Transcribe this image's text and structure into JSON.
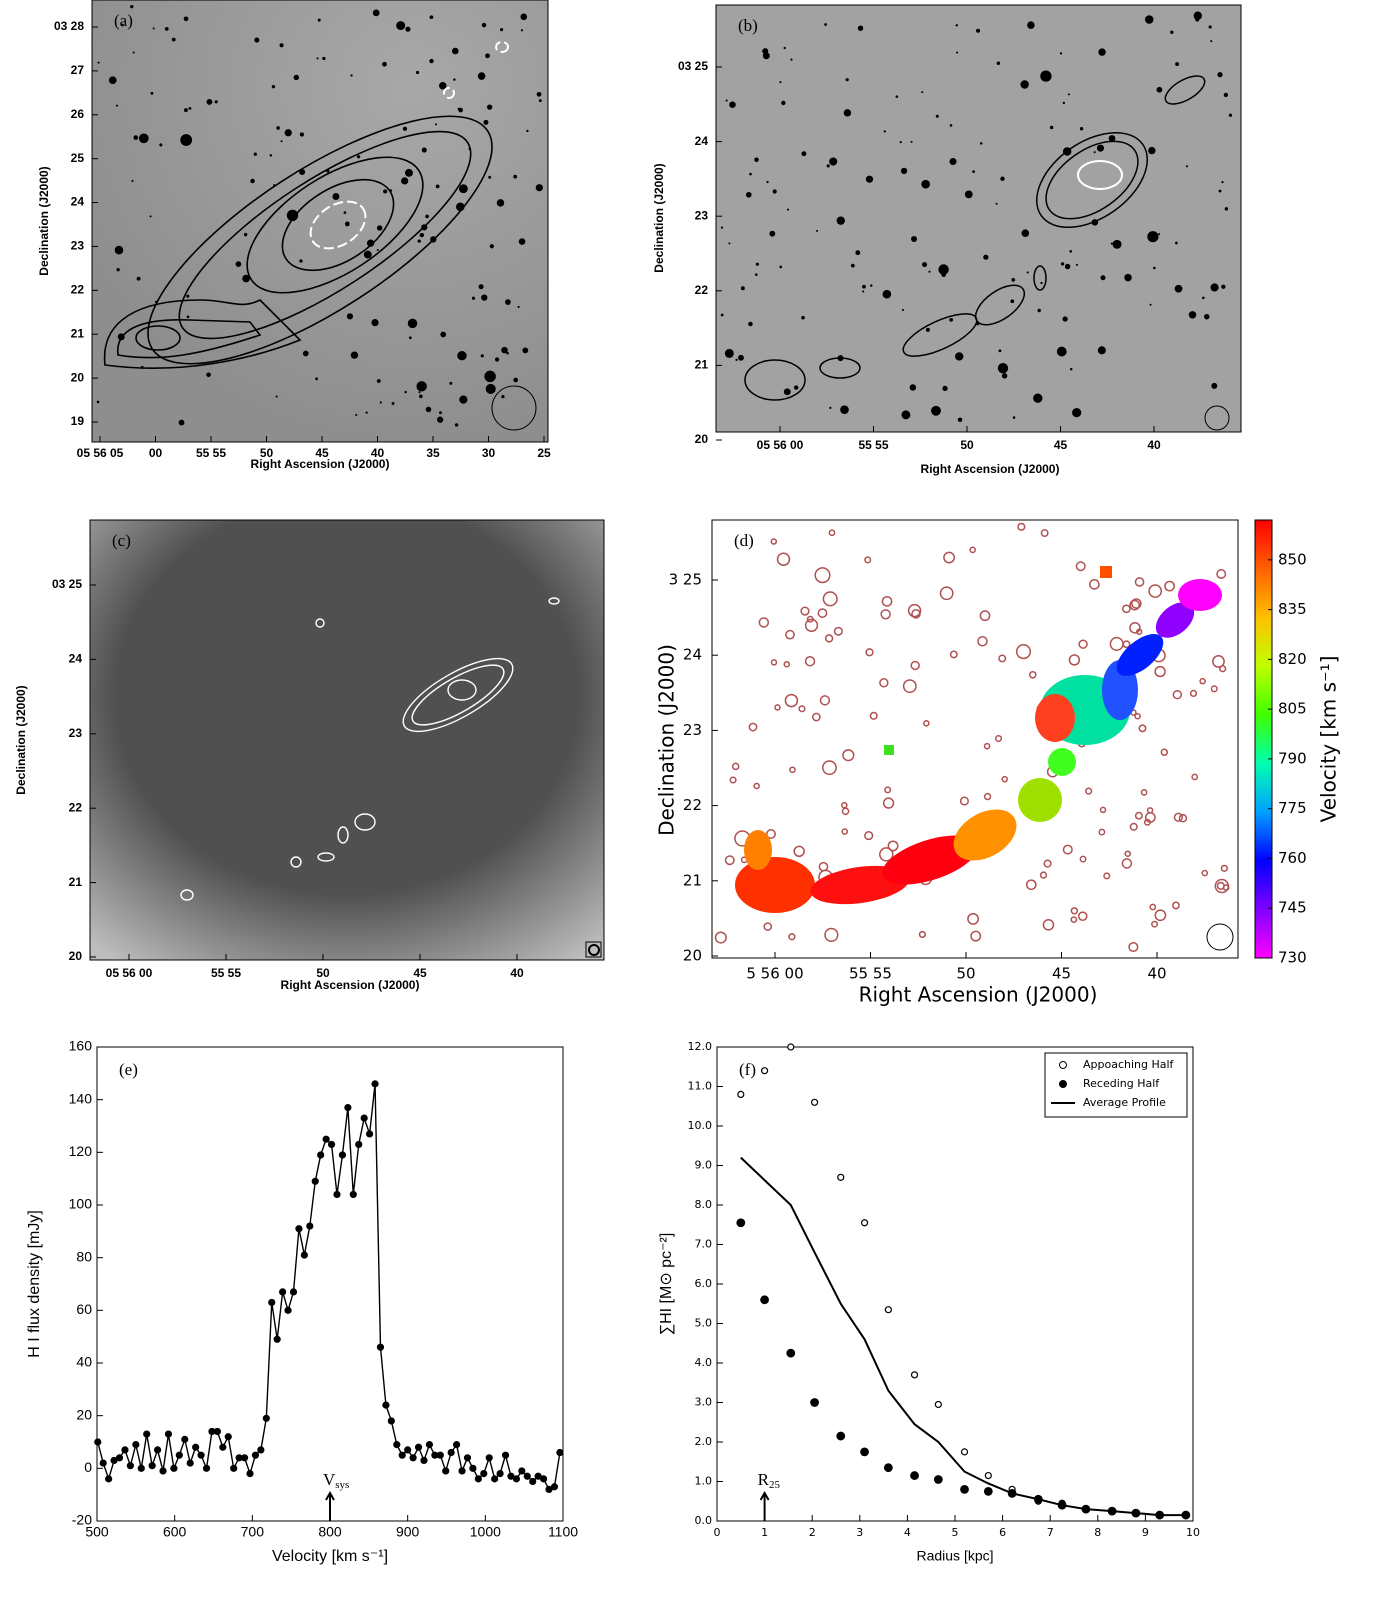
{
  "chart_data": [
    {
      "type": "image",
      "panel": "(a)",
      "xlabel": "Right Ascension (J2000)",
      "ylabel": "Declination (J2000)",
      "xtick_labels": [
        "05 56 05",
        "00",
        "55 55",
        "50",
        "45",
        "40",
        "35",
        "30",
        "25"
      ],
      "ytick_labels": [
        "03 28",
        "27",
        "26",
        "25",
        "24",
        "23",
        "22",
        "21",
        "20",
        "19"
      ]
    },
    {
      "type": "image",
      "panel": "(b)",
      "xlabel": "Right Ascension (J2000)",
      "ylabel": "Declination (J2000)",
      "xtick_labels": [
        "05 56 00",
        "55 55",
        "50",
        "45",
        "40"
      ],
      "ytick_labels": [
        "03 25",
        "24",
        "23",
        "22",
        "21",
        "20"
      ]
    },
    {
      "type": "image",
      "panel": "(c)",
      "xlabel": "Right Ascension (J2000)",
      "ylabel": "Declination (J2000)",
      "xtick_labels": [
        "05 56 00",
        "55 55",
        "50",
        "45",
        "40"
      ],
      "ytick_labels": [
        "03 25",
        "24",
        "23",
        "22",
        "21",
        "20"
      ]
    },
    {
      "type": "image",
      "panel": "(d)",
      "xlabel": "Right Ascension (J2000)",
      "ylabel": "Declination (J2000)",
      "xtick_labels": [
        "5 56 00",
        "55 55",
        "50",
        "45",
        "40"
      ],
      "ytick_labels": [
        "3 25",
        "24",
        "23",
        "22",
        "21",
        "20"
      ],
      "colorbar": {
        "label": "Velocity [km s⁻¹]",
        "lim": [
          730,
          862
        ],
        "ticks": [
          730,
          745,
          760,
          775,
          790,
          805,
          820,
          835,
          850
        ],
        "colors": [
          "#ff00ff",
          "#8000ff",
          "#0000ff",
          "#00a0ff",
          "#00ffb0",
          "#40ff00",
          "#c0ff00",
          "#ffc000",
          "#ff6000",
          "#ff0000"
        ]
      }
    },
    {
      "type": "line",
      "panel": "(e)",
      "xlabel": "Velocity [km s⁻¹]",
      "ylabel": "H I flux density [mJy]",
      "xlim": [
        500,
        1100
      ],
      "xticks": [
        500,
        600,
        700,
        800,
        900,
        1000,
        1100
      ],
      "ylim": [
        -20,
        160
      ],
      "yticks": [
        -20,
        0,
        20,
        40,
        60,
        80,
        100,
        120,
        140,
        160
      ],
      "annotations": [
        {
          "text": "V",
          "sub": "sys",
          "x": 800
        }
      ],
      "x": [
        501,
        508,
        515,
        522,
        529,
        536,
        543,
        550,
        557,
        564,
        571,
        578,
        585,
        592,
        599,
        606,
        613,
        620,
        627,
        634,
        641,
        648,
        655,
        662,
        669,
        676,
        683,
        690,
        697,
        704,
        711,
        718,
        725,
        732,
        739,
        746,
        753,
        760,
        767,
        774,
        781,
        788,
        795,
        802,
        809,
        816,
        823,
        830,
        837,
        844,
        851,
        858,
        865,
        872,
        879,
        886,
        893,
        900,
        907,
        914,
        921,
        928,
        935,
        942,
        949,
        956,
        963,
        970,
        977,
        984,
        991,
        998,
        1005,
        1012,
        1019,
        1026,
        1033,
        1040,
        1047,
        1054,
        1061,
        1068,
        1075,
        1082,
        1089,
        1096
      ],
      "series": [
        {
          "color": "#000000",
          "markers": true,
          "values": [
            10,
            2,
            -4,
            3,
            4,
            7,
            1,
            9,
            0,
            13,
            1,
            7,
            -1,
            13,
            0,
            5,
            11,
            2,
            8,
            5,
            0,
            14,
            14,
            8,
            12,
            0,
            4,
            4,
            -2,
            5,
            7,
            19,
            63,
            49,
            67,
            60,
            67,
            91,
            81,
            92,
            109,
            119,
            125,
            123,
            104,
            119,
            137,
            104,
            123,
            133,
            127,
            146,
            46,
            24,
            18,
            9,
            5,
            7,
            4,
            8,
            3,
            9,
            5,
            5,
            -1,
            6,
            9,
            -1,
            4,
            0,
            -4,
            -2,
            4,
            -4,
            -2,
            5,
            -3,
            -4,
            -1,
            -3,
            -5,
            -3,
            -4,
            -8,
            -7,
            6
          ]
        }
      ]
    },
    {
      "type": "scatter",
      "panel": "(f)",
      "xlabel": "Radius [kpc]",
      "ylabel": "∑HI   [M⊙ pc⁻²]",
      "xlim": [
        0,
        10
      ],
      "xticks": [
        0,
        1,
        2,
        3,
        4,
        5,
        6,
        7,
        8,
        9,
        10
      ],
      "ylim": [
        0,
        12
      ],
      "yticks": [
        {
          "value": 0,
          "label": "0.0"
        },
        {
          "value": 1,
          "label": "1.0"
        },
        {
          "value": 2,
          "label": "2.0"
        },
        {
          "value": 3,
          "label": "3.0"
        },
        {
          "value": 4,
          "label": "4.0"
        },
        {
          "value": 5,
          "label": "5.0"
        },
        {
          "value": 6,
          "label": "6.0"
        },
        {
          "value": 7,
          "label": "7.0"
        },
        {
          "value": 8,
          "label": "8.0"
        },
        {
          "value": 9,
          "label": "9.0"
        },
        {
          "value": 10,
          "label": "10.0"
        },
        {
          "value": 11,
          "label": "11.0"
        },
        {
          "value": 12,
          "label": "12.0"
        }
      ],
      "legend": "upper right",
      "annotations": [
        {
          "text": "R",
          "sub": "25",
          "x": 1
        }
      ],
      "series": [
        {
          "name": "Appoaching Half",
          "marker": "open",
          "color": "#000000",
          "x": [
            0.5,
            1.0,
            1.55,
            2.05,
            2.6,
            3.1,
            3.6,
            4.15,
            4.65,
            5.2,
            5.7,
            6.2,
            6.75,
            7.25,
            7.75,
            8.3,
            8.8,
            9.3,
            9.85
          ],
          "values": [
            10.8,
            11.4,
            12.0,
            10.6,
            8.7,
            7.55,
            5.35,
            3.7,
            2.95,
            1.75,
            1.15,
            0.8,
            0.5,
            0.45,
            0.3,
            0.25,
            0.2,
            0.15,
            0.15
          ]
        },
        {
          "name": "Receding Half",
          "marker": "filled",
          "color": "#000000",
          "x": [
            0.5,
            1.0,
            1.55,
            2.05,
            2.6,
            3.1,
            3.6,
            4.15,
            4.65,
            5.2,
            5.7,
            6.2,
            6.75,
            7.25,
            7.75,
            8.3,
            8.8,
            9.3,
            9.85
          ],
          "values": [
            7.55,
            5.6,
            4.25,
            3.0,
            2.15,
            1.75,
            1.35,
            1.15,
            1.05,
            0.8,
            0.75,
            0.7,
            0.55,
            0.4,
            0.3,
            0.25,
            0.2,
            0.15,
            0.15
          ]
        },
        {
          "name": "Average Profile",
          "marker": "line",
          "color": "#000000",
          "x": [
            0.5,
            1.55,
            2.05,
            2.6,
            3.1,
            3.6,
            4.15,
            4.65,
            5.2,
            5.7,
            6.2,
            6.75,
            7.25,
            7.75,
            8.3,
            8.8,
            9.3,
            9.85
          ],
          "values": [
            9.2,
            8.0,
            6.8,
            5.5,
            4.6,
            3.3,
            2.45,
            2.0,
            1.25,
            0.95,
            0.7,
            0.55,
            0.4,
            0.3,
            0.25,
            0.2,
            0.15,
            0.15
          ]
        }
      ]
    }
  ]
}
